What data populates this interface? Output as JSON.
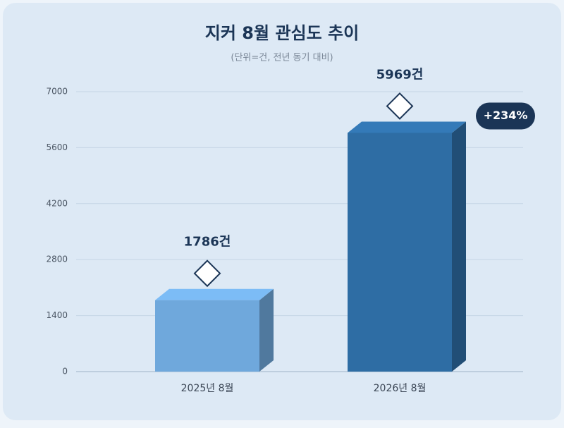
{
  "chart_data": {
    "type": "bar3d",
    "title": "지커 8월 관심도 추이",
    "subtitle": "(단위=건, 전년 동기 대비)",
    "categories": [
      "2025년 8월",
      "2026년 8월"
    ],
    "values": [
      1786,
      5969
    ],
    "value_labels": [
      "1786건",
      "5969건"
    ],
    "colors": [
      "#6fa8dc",
      "#2e6da4"
    ],
    "ylim": [
      0,
      7000
    ],
    "yticks": [
      0,
      1400,
      2800,
      4200,
      5600,
      7000
    ],
    "grid": true,
    "annotation": "+234%"
  }
}
